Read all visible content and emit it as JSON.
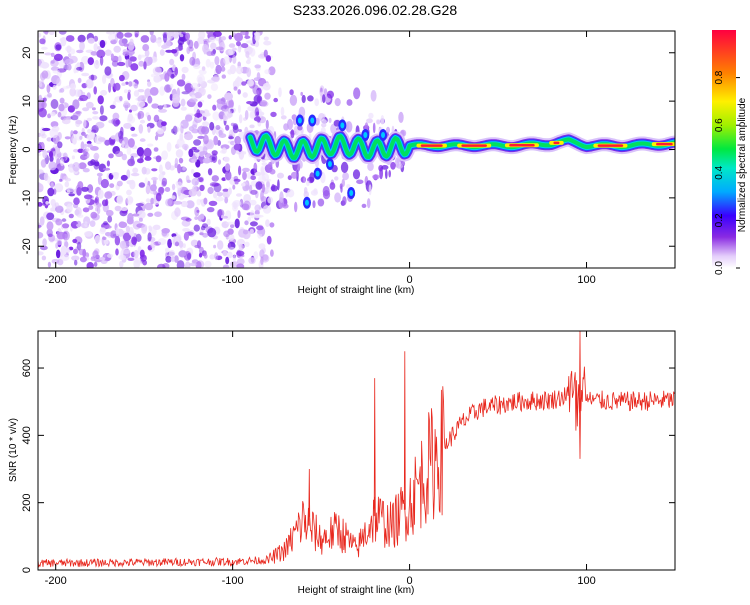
{
  "title": "S233.2026.096.02.28.G28",
  "chart_data": [
    {
      "type": "heatmap",
      "title": "S233.2026.096.02.28.G28",
      "xlabel": "Height of straight line (km)",
      "ylabel": "Frequency (Hz)",
      "xlim": [
        -210,
        150
      ],
      "ylim": [
        -24.5,
        24.5
      ],
      "xticks": [
        -200,
        -100,
        0,
        100
      ],
      "yticks": [
        -20,
        -10,
        0,
        10,
        20
      ],
      "noise_region_x": [
        -210,
        -80
      ],
      "coherent_region_x": [
        -90,
        150
      ],
      "ridge": {
        "x": [
          -90,
          -80,
          -70,
          -60,
          -50,
          -40,
          -30,
          -20,
          -10,
          0,
          20,
          40,
          60,
          80,
          90,
          100,
          120,
          150
        ],
        "freq": [
          1.5,
          1,
          0,
          0,
          0.5,
          1,
          0.5,
          0,
          0.5,
          0.8,
          0.8,
          0.8,
          0.8,
          1.2,
          1.8,
          0.8,
          0.8,
          1.2
        ]
      },
      "colorbar": {
        "label": "Normalized spectral amplitude",
        "range": [
          0,
          1
        ],
        "ticks": [
          0.0,
          0.2,
          0.4,
          0.6,
          0.8
        ]
      }
    },
    {
      "type": "line",
      "xlabel": "Height of straight line (km)",
      "ylabel": "SNR (10 * v/v)",
      "xlim": [
        -210,
        150
      ],
      "ylim": [
        0,
        710
      ],
      "xticks": [
        -200,
        -100,
        0,
        100
      ],
      "yticks": [
        0,
        200,
        400,
        600
      ],
      "color": "#e8281e",
      "trend": {
        "x": [
          -210,
          -100,
          -80,
          -70,
          -60,
          -50,
          -40,
          -30,
          -20,
          -10,
          0,
          10,
          20,
          30,
          40,
          60,
          80,
          90,
          95,
          100,
          120,
          150
        ],
        "y": [
          20,
          25,
          30,
          60,
          150,
          90,
          120,
          60,
          160,
          130,
          200,
          300,
          370,
          440,
          480,
          500,
          505,
          520,
          470,
          505,
          500,
          505
        ]
      },
      "spikes": [
        {
          "x": -57,
          "y": 300
        },
        {
          "x": -20,
          "y": 570
        },
        {
          "x": -3,
          "y": 650
        },
        {
          "x": 96,
          "y": 710
        },
        {
          "x": 96,
          "y": 330
        }
      ]
    }
  ]
}
